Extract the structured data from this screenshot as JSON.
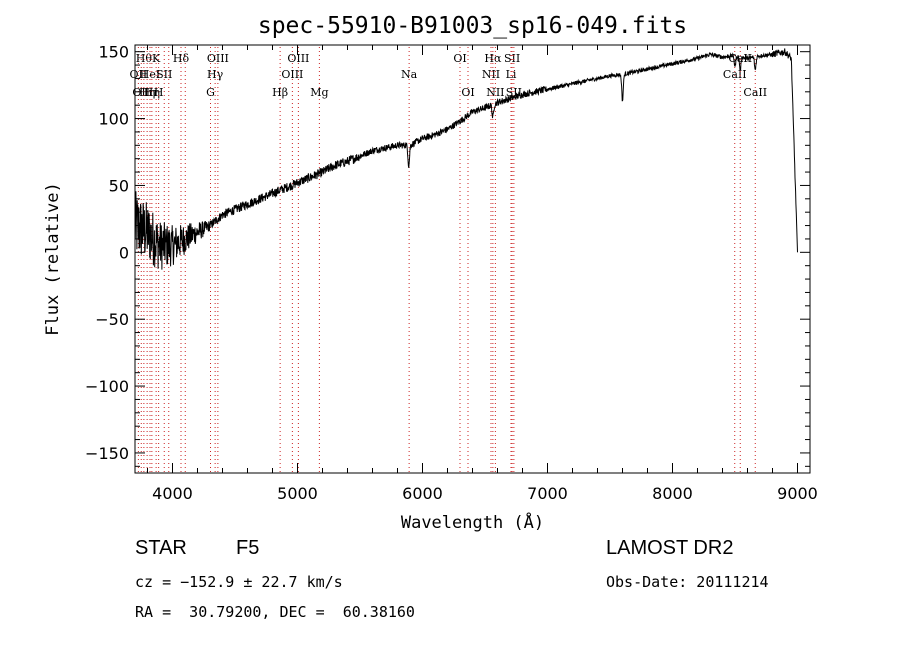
{
  "chart_data": {
    "type": "line",
    "title": "spec-55910-B91003_sp16-049.fits",
    "xlabel": "Wavelength (Å)",
    "ylabel": "Flux (relative)",
    "xlim": [
      3700,
      9100
    ],
    "ylim": [
      -165,
      155
    ],
    "xticks": [
      4000,
      5000,
      6000,
      7000,
      8000,
      9000
    ],
    "yticks": [
      -150,
      -100,
      -50,
      0,
      50,
      100,
      150
    ],
    "grid": false,
    "series": [
      {
        "x": [
          3700,
          3800,
          3900,
          4000,
          4100,
          4200,
          4300,
          4400,
          4500,
          4600,
          4700,
          4800,
          4900,
          5000,
          5100,
          5200,
          5300,
          5400,
          5500,
          5600,
          5700,
          5800,
          5900,
          6000,
          6100,
          6200,
          6300,
          6400,
          6500,
          6600,
          6700,
          6800,
          6900,
          7000,
          7100,
          7200,
          7300,
          7400,
          7500,
          7600,
          7700,
          7800,
          7900,
          8000,
          8100,
          8200,
          8300,
          8400,
          8500,
          8600,
          8700,
          8800,
          8900,
          8950,
          9000
        ],
        "y": [
          20,
          15,
          5,
          5,
          10,
          15,
          20,
          28,
          32,
          36,
          40,
          44,
          48,
          52,
          56,
          60,
          65,
          68,
          72,
          76,
          78,
          80,
          80,
          85,
          88,
          92,
          98,
          105,
          108,
          112,
          115,
          118,
          120,
          122,
          124,
          126,
          128,
          130,
          132,
          133,
          135,
          137,
          139,
          141,
          143,
          145,
          148,
          146,
          147,
          145,
          147,
          148,
          150,
          145,
          0
        ]
      }
    ],
    "absorption_dips": [
      {
        "x": 5890,
        "depth": 15
      },
      {
        "x": 6563,
        "depth": 10
      },
      {
        "x": 7600,
        "depth": 20
      },
      {
        "x": 8500,
        "depth": 8
      },
      {
        "x": 8542,
        "depth": 10
      },
      {
        "x": 8662,
        "depth": 10
      }
    ],
    "line_markers": [
      {
        "x": 3727,
        "label": "OII",
        "row": 2
      },
      {
        "x": 3750,
        "label": "OII",
        "row": 3
      },
      {
        "x": 3771,
        "label": "Hθ",
        "row": 1
      },
      {
        "x": 3797,
        "label": "Hη",
        "row": 3
      },
      {
        "x": 3820,
        "label": "HeI",
        "row": 2
      },
      {
        "x": 3835,
        "label": "Hη",
        "row": 3
      },
      {
        "x": 3869,
        "label": "K",
        "row": 1
      },
      {
        "x": 3889,
        "label": "H",
        "row": 3
      },
      {
        "x": 3934,
        "label": "SII",
        "row": 2
      },
      {
        "x": 3970,
        "label": "",
        "row": 0
      },
      {
        "x": 4068,
        "label": "Hδ",
        "row": 1
      },
      {
        "x": 4102,
        "label": "",
        "row": 0
      },
      {
        "x": 4304,
        "label": "G",
        "row": 3
      },
      {
        "x": 4341,
        "label": "Hγ",
        "row": 2
      },
      {
        "x": 4363,
        "label": "OIII",
        "row": 1
      },
      {
        "x": 4861,
        "label": "Hβ",
        "row": 3
      },
      {
        "x": 4959,
        "label": "OIII",
        "row": 2
      },
      {
        "x": 5007,
        "label": "OIII",
        "row": 1
      },
      {
        "x": 5175,
        "label": "Mg",
        "row": 3
      },
      {
        "x": 5893,
        "label": "Na",
        "row": 2
      },
      {
        "x": 6300,
        "label": "OI",
        "row": 1
      },
      {
        "x": 6364,
        "label": "OI",
        "row": 3
      },
      {
        "x": 6548,
        "label": "NII",
        "row": 2
      },
      {
        "x": 6563,
        "label": "Hα",
        "row": 1
      },
      {
        "x": 6583,
        "label": "NII",
        "row": 3
      },
      {
        "x": 6708,
        "label": "Li",
        "row": 2
      },
      {
        "x": 6717,
        "label": "SII",
        "row": 1
      },
      {
        "x": 6731,
        "label": "SII",
        "row": 3
      },
      {
        "x": 8498,
        "label": "CaII",
        "row": 2
      },
      {
        "x": 8542,
        "label": "CaII",
        "row": 1
      },
      {
        "x": 8662,
        "label": "CaII",
        "row": 3
      }
    ]
  },
  "footer": {
    "class_label": "STAR",
    "subclass": "F5",
    "survey": "LAMOST DR2",
    "cz_line": "cz = −152.9 ± 22.7 km/s",
    "obs_date": "Obs-Date: 20111214",
    "coords": "RA =  30.79200, DEC =  60.38160"
  }
}
